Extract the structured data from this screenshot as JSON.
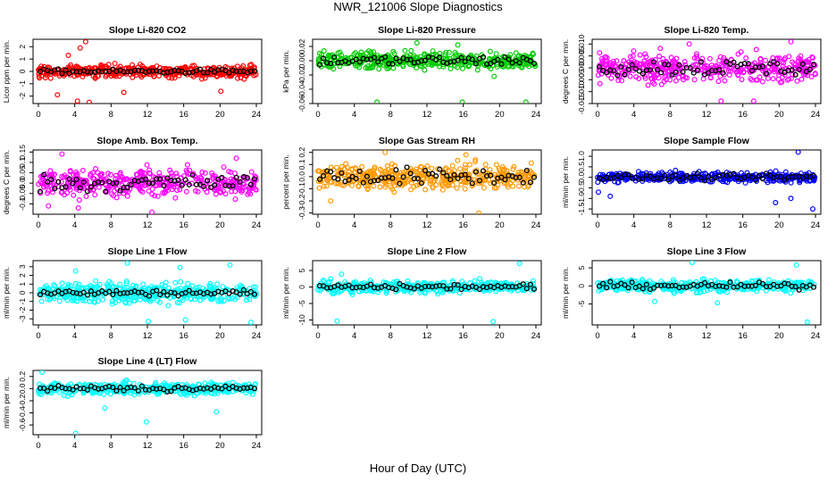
{
  "figure": {
    "title": "NWR_121006  Slope Diagnostics",
    "xlabel": "Hour of Day (UTC)",
    "x_ticks": [
      "0",
      "4",
      "8",
      "12",
      "16",
      "20",
      "24"
    ]
  },
  "chart_data": [
    {
      "type": "scatter",
      "title": "Slope Li-820 CO2",
      "ylabel": "Licor ppm per min.",
      "color": "#ff0000",
      "xlim": [
        0,
        24
      ],
      "ylim": [
        -2.6,
        2.6
      ],
      "y_ticks": [
        -2,
        -1,
        0,
        1,
        2
      ],
      "y_tick_labels": [
        "-2",
        "-1",
        "0",
        "1",
        "2"
      ],
      "spread": 0.35,
      "outliers": [
        [
          5.2,
          2.4
        ],
        [
          4.6,
          1.9
        ],
        [
          2.1,
          -1.9
        ],
        [
          4.3,
          -2.4
        ],
        [
          9.4,
          -1.7
        ],
        [
          20.1,
          -1.6
        ],
        [
          5.6,
          -2.5
        ],
        [
          3.3,
          1.3
        ]
      ],
      "black_spread": 0.12
    },
    {
      "type": "scatter",
      "title": "Slope Li-820 Pressure",
      "ylabel": "kPa per min.",
      "color": "#00cc00",
      "xlim": [
        0,
        24
      ],
      "ylim": [
        -0.06,
        0.03
      ],
      "y_ticks": [
        -0.06,
        -0.04,
        -0.02,
        0.0,
        0.02
      ],
      "y_tick_labels": [
        "-0.06",
        "-0.04",
        "-0.02",
        "0.00",
        "0.02"
      ],
      "spread": 0.008,
      "outliers": [
        [
          6.5,
          -0.058
        ],
        [
          15.9,
          -0.058
        ],
        [
          22.9,
          -0.058
        ],
        [
          10.9,
          0.025
        ],
        [
          15.4,
          0.022
        ],
        [
          19.4,
          -0.022
        ]
      ],
      "black_spread": 0.005
    },
    {
      "type": "scatter",
      "title": "Slope Li-820 Temp.",
      "ylabel": "degrees C per min.",
      "color": "#ff00ff",
      "xlim": [
        0,
        24
      ],
      "ylim": [
        -0.015,
        0.012
      ],
      "y_ticks": [
        -0.015,
        -0.01,
        -0.005,
        0.0,
        0.005,
        0.01
      ],
      "y_tick_labels": [
        "-0.015",
        "-0.010",
        "-0.005",
        "0.000",
        "0.005",
        "0.010"
      ],
      "spread": 0.004,
      "outliers": [
        [
          21.3,
          0.011
        ],
        [
          10.1,
          0.01
        ],
        [
          13.6,
          -0.014
        ],
        [
          17.2,
          -0.014
        ]
      ],
      "black_spread": 0.0025
    },
    {
      "type": "scatter",
      "title": "Slope Amb. Box Temp.",
      "ylabel": "degrees C per min.",
      "color": "#ff00ff",
      "xlim": [
        0,
        24
      ],
      "ylim": [
        -0.15,
        0.16
      ],
      "y_ticks": [
        -0.1,
        -0.05,
        0.0,
        0.05,
        0.1,
        0.15
      ],
      "y_tick_labels": [
        "-0.1",
        "-0.05",
        "0.0",
        "0.05",
        "0.1",
        "0.15"
      ],
      "spread": 0.045,
      "outliers": [
        [
          2.6,
          0.14
        ],
        [
          12.5,
          -0.14
        ],
        [
          4.4,
          -0.12
        ],
        [
          21.8,
          0.12
        ],
        [
          1.1,
          -0.11
        ]
      ],
      "black_spread": 0.03
    },
    {
      "type": "scatter",
      "title": "Slope Gas Stream RH",
      "ylabel": "percent per min.",
      "color": "#ff9900",
      "xlim": [
        0,
        24
      ],
      "ylim": [
        -0.31,
        0.22
      ],
      "y_ticks": [
        -0.3,
        -0.2,
        -0.1,
        0.0,
        0.1,
        0.2
      ],
      "y_tick_labels": [
        "-0.3",
        "-0.2",
        "-0.1",
        "0.0",
        "0.1",
        "0.2"
      ],
      "spread": 0.07,
      "outliers": [
        [
          7.4,
          0.2
        ],
        [
          17.7,
          -0.3
        ],
        [
          1.4,
          -0.2
        ],
        [
          16.3,
          0.18
        ]
      ],
      "black_spread": 0.05
    },
    {
      "type": "scatter",
      "title": "Slope Sample Flow",
      "ylabel": "ml/min per min.",
      "color": "#0000ff",
      "xlim": [
        0,
        24
      ],
      "ylim": [
        -1.75,
        1.3
      ],
      "y_ticks": [
        -1.5,
        -1.0,
        -0.5,
        0.0,
        0.5,
        1.0
      ],
      "y_tick_labels": [
        "-1.5",
        "-1.0",
        "-0.5",
        "0.0",
        "0.5",
        "1.0"
      ],
      "spread": 0.16,
      "outliers": [
        [
          23.7,
          -1.5
        ],
        [
          22.1,
          1.2
        ],
        [
          19.6,
          -1.2
        ],
        [
          1.4,
          -0.9
        ],
        [
          21.3,
          -1.0
        ],
        [
          0.1,
          -0.7
        ]
      ],
      "black_spread": 0.1
    },
    {
      "type": "scatter",
      "title": "Slope Line 1 Flow",
      "ylabel": "ml/min per min.",
      "color": "#00ffff",
      "xlim": [
        0,
        24
      ],
      "ylim": [
        -3.7,
        3.7
      ],
      "y_ticks": [
        -3,
        -2,
        -1,
        0,
        1,
        2,
        3
      ],
      "y_tick_labels": [
        "-3",
        "-2",
        "-1",
        "0",
        "1",
        "2",
        "3"
      ],
      "spread": 0.8,
      "outliers": [
        [
          12.1,
          -3.3
        ],
        [
          23.4,
          -3.4
        ],
        [
          9.8,
          3.4
        ],
        [
          21.1,
          3.2
        ],
        [
          16.2,
          -3.1
        ],
        [
          15.6,
          2.9
        ],
        [
          4.1,
          2.5
        ]
      ],
      "black_spread": 0.25
    },
    {
      "type": "scatter",
      "title": "Slope Line 2 Flow",
      "ylabel": "ml/min per min.",
      "color": "#00ffff",
      "xlim": [
        0,
        24
      ],
      "ylim": [
        -11.5,
        8
      ],
      "y_ticks": [
        -10,
        -5,
        0,
        5
      ],
      "y_tick_labels": [
        "-10",
        "-5",
        "0",
        "5"
      ],
      "spread": 1.2,
      "outliers": [
        [
          2.1,
          -10.3
        ],
        [
          19.3,
          -10.5
        ],
        [
          22.2,
          7.1
        ],
        [
          2.6,
          3.9
        ]
      ],
      "black_spread": 0.6
    },
    {
      "type": "scatter",
      "title": "Slope Line 3 Flow",
      "ylabel": "ml/min per min.",
      "color": "#00ffff",
      "xlim": [
        0,
        24
      ],
      "ylim": [
        -10.8,
        7
      ],
      "y_ticks": [
        -5,
        0,
        5
      ],
      "y_tick_labels": [
        "-5",
        "0",
        "5"
      ],
      "spread": 1.2,
      "outliers": [
        [
          23.1,
          -10
        ],
        [
          10.4,
          6.5
        ],
        [
          21.9,
          5.8
        ],
        [
          13.2,
          -4.7
        ],
        [
          6.3,
          -4.3
        ]
      ],
      "black_spread": 0.6
    },
    {
      "type": "scatter",
      "title": "Slope Line 4 (LT) Flow",
      "ylabel": "ml/min per min.",
      "color": "#00ffff",
      "xlim": [
        0,
        24
      ],
      "ylim": [
        -0.76,
        0.3
      ],
      "y_ticks": [
        -0.6,
        -0.4,
        -0.2,
        0.0,
        0.2
      ],
      "y_tick_labels": [
        "-0.6",
        "-0.4",
        "-0.2",
        "0.0",
        "0.2"
      ],
      "spread": 0.07,
      "outliers": [
        [
          4.1,
          -0.74
        ],
        [
          11.9,
          -0.55
        ],
        [
          19.6,
          -0.38
        ],
        [
          0.4,
          0.27
        ],
        [
          7.3,
          -0.32
        ]
      ],
      "black_spread": 0.04
    }
  ]
}
